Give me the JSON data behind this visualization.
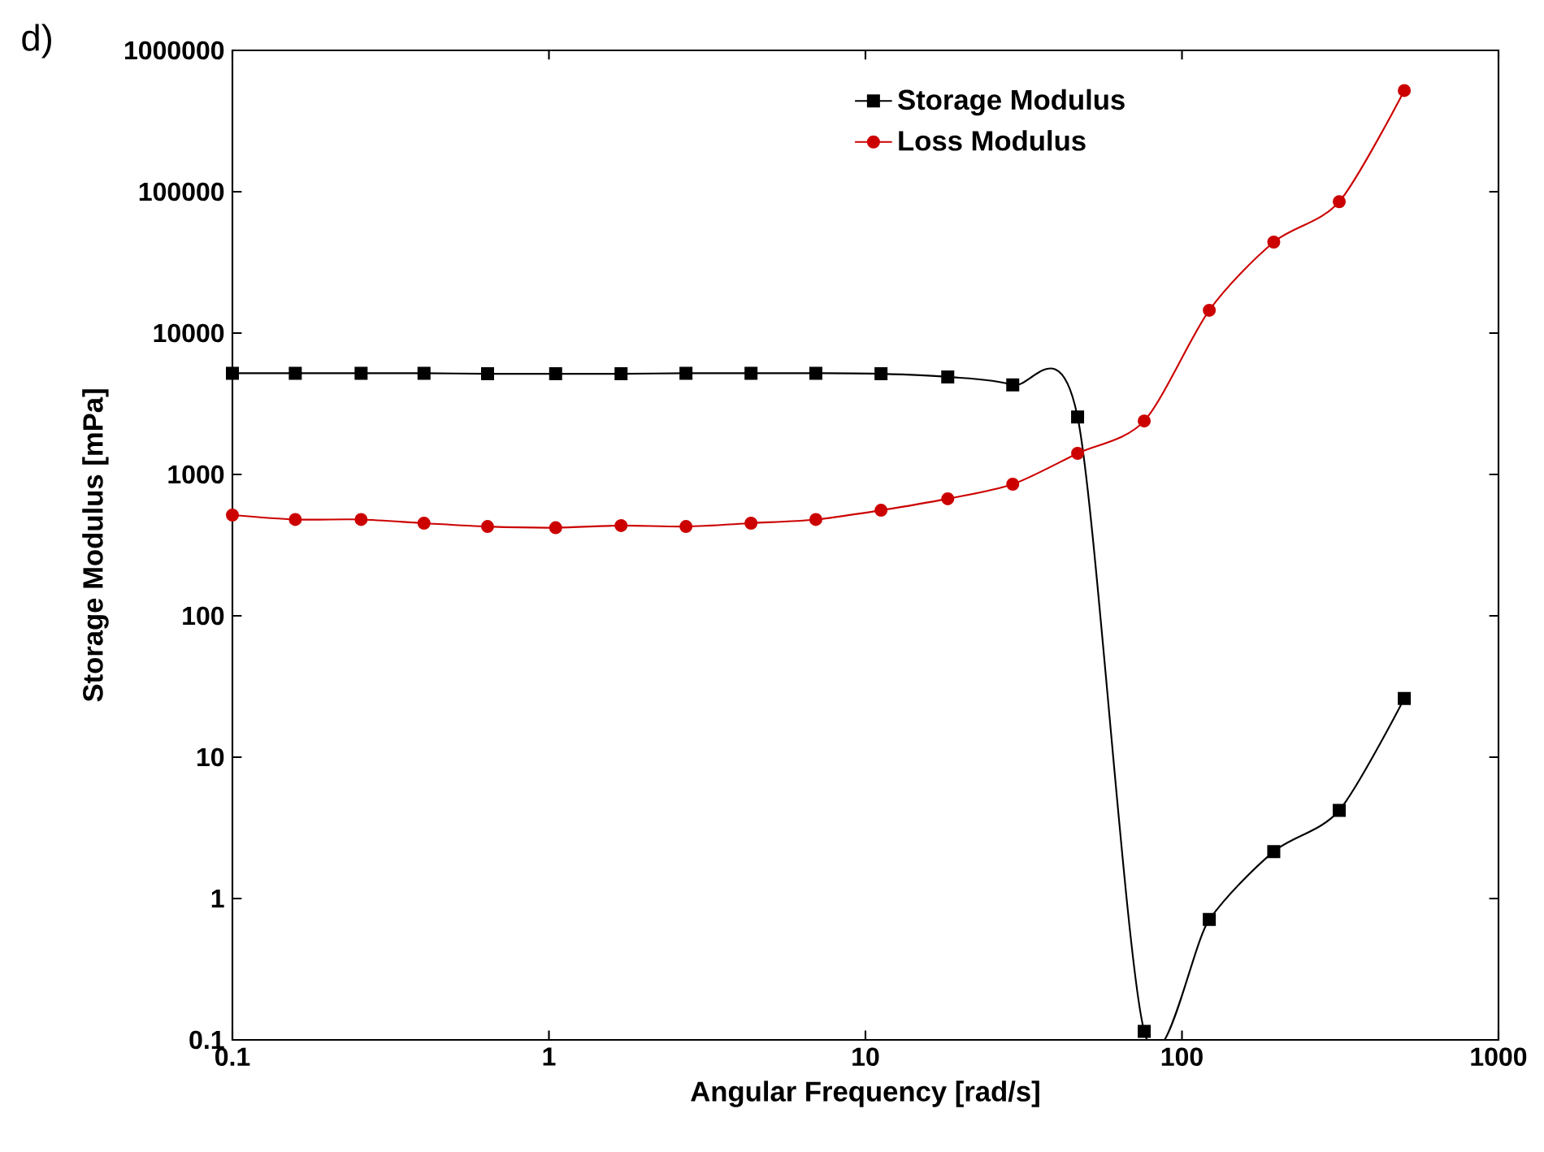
{
  "chart_data": {
    "type": "line",
    "xlabel": "Angular Frequency [rad/s]",
    "ylabel": "Storage Modulus [mPa]",
    "annotations": [
      "d)"
    ],
    "log": "xy",
    "legend": "top",
    "grid": false,
    "xlim": [
      0.1,
      1000
    ],
    "xticks": [
      0.1,
      1,
      10,
      100,
      1000
    ],
    "ylim": [
      0.1,
      1000000
    ],
    "yticks": [
      0.1,
      1,
      10,
      100,
      1000,
      10000,
      100000,
      1000000
    ],
    "x": [
      0.1,
      0.158,
      0.255,
      0.403,
      0.64,
      1.05,
      1.69,
      2.71,
      4.35,
      6.97,
      11.2,
      18.2,
      29.2,
      46.8,
      76,
      122,
      195,
      314,
      504
    ],
    "series": [
      {
        "name": "Storage Modulus",
        "color": "#000000",
        "marker": "square",
        "values": [
          5200,
          5200,
          5200,
          5200,
          5150,
          5150,
          5150,
          5200,
          5200,
          5200,
          5150,
          4900,
          4300,
          2550,
          0.115,
          0.71,
          2.15,
          4.2,
          26
        ]
      },
      {
        "name": "Loss Modulus",
        "color": "#cc0000",
        "marker": "circle",
        "values": [
          516,
          480,
          480,
          452,
          428,
          420,
          435,
          428,
          452,
          480,
          558,
          673,
          853,
          1410,
          2390,
          14500,
          44000,
          85000,
          520000
        ]
      }
    ]
  }
}
